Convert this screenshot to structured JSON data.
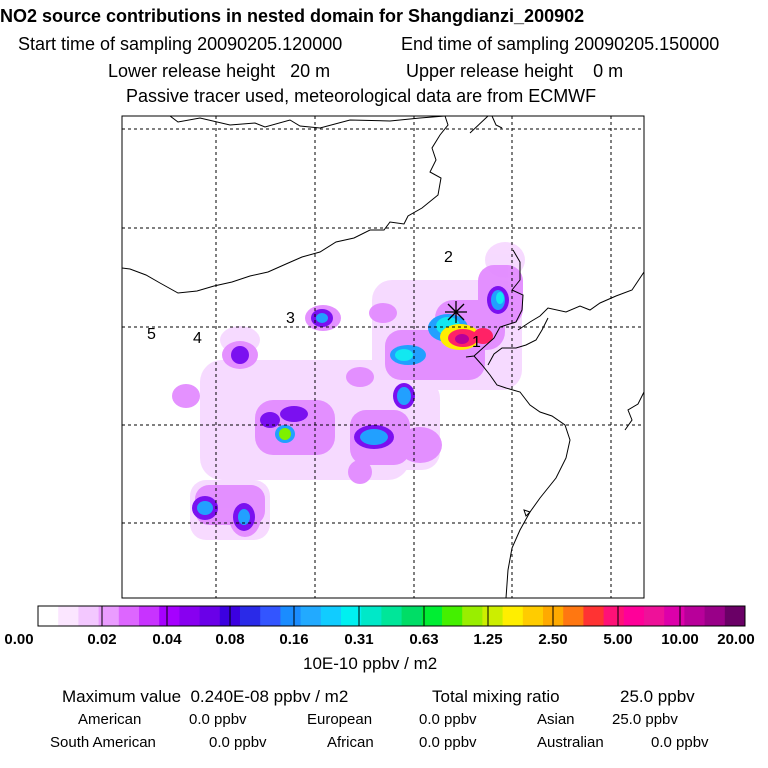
{
  "header": {
    "title": "NO2 source contributions in nested domain for Shangdianzi_200902",
    "start_label": "Start time of sampling 20090205.120000",
    "end_label": "End time of sampling 20090205.150000",
    "lower_label": "Lower release height   20 m",
    "upper_label": "Upper release height    0 m",
    "passive_line": "Passive tracer used, meteorological data are from ECMWF"
  },
  "map": {
    "region_labels": [
      "1",
      "2",
      "3",
      "4",
      "5"
    ],
    "receptor_marker": "star-marker"
  },
  "colorbar": {
    "ticks": [
      "0.00",
      "0.02",
      "0.04",
      "0.08",
      "0.16",
      "0.31",
      "0.63",
      "1.25",
      "2.50",
      "5.00",
      "10.00",
      "20.00"
    ],
    "unit": "10E-10 ppbv / m2",
    "colors": [
      "#ffffff",
      "#fbe6ff",
      "#f3c8ff",
      "#ea9cff",
      "#dd66ff",
      "#c833ff",
      "#a600ff",
      "#8800f0",
      "#6a00e8",
      "#3c00e0",
      "#2a2ae8",
      "#3355ff",
      "#1a8cff",
      "#22aaff",
      "#11ccff",
      "#00f0f0",
      "#00e8c8",
      "#00e699",
      "#00dd66",
      "#00ee33",
      "#44f000",
      "#99ee00",
      "#ccee00",
      "#ffee00",
      "#ffcc00",
      "#ffaa00",
      "#ff7711",
      "#ff3333",
      "#ff1177",
      "#ff0099",
      "#ee1199",
      "#dd00aa",
      "#b8009a",
      "#990088",
      "#6a0066"
    ]
  },
  "footer": {
    "max_label": "Maximum value  0.240E-08 ppbv / m2",
    "total_label": "Total mixing ratio",
    "total_value": "25.0 ppbv",
    "american_label": "American",
    "american_value": "0.0 ppbv",
    "european_label": "European",
    "european_value": "0.0 ppbv",
    "asian_label": "Asian",
    "asian_value": "25.0 ppbv",
    "south_american_label": "South American",
    "south_american_value": "0.0 ppbv",
    "african_label": "African",
    "african_value": "0.0 ppbv",
    "australian_label": "Australian",
    "australian_value": "0.0 ppbv"
  }
}
